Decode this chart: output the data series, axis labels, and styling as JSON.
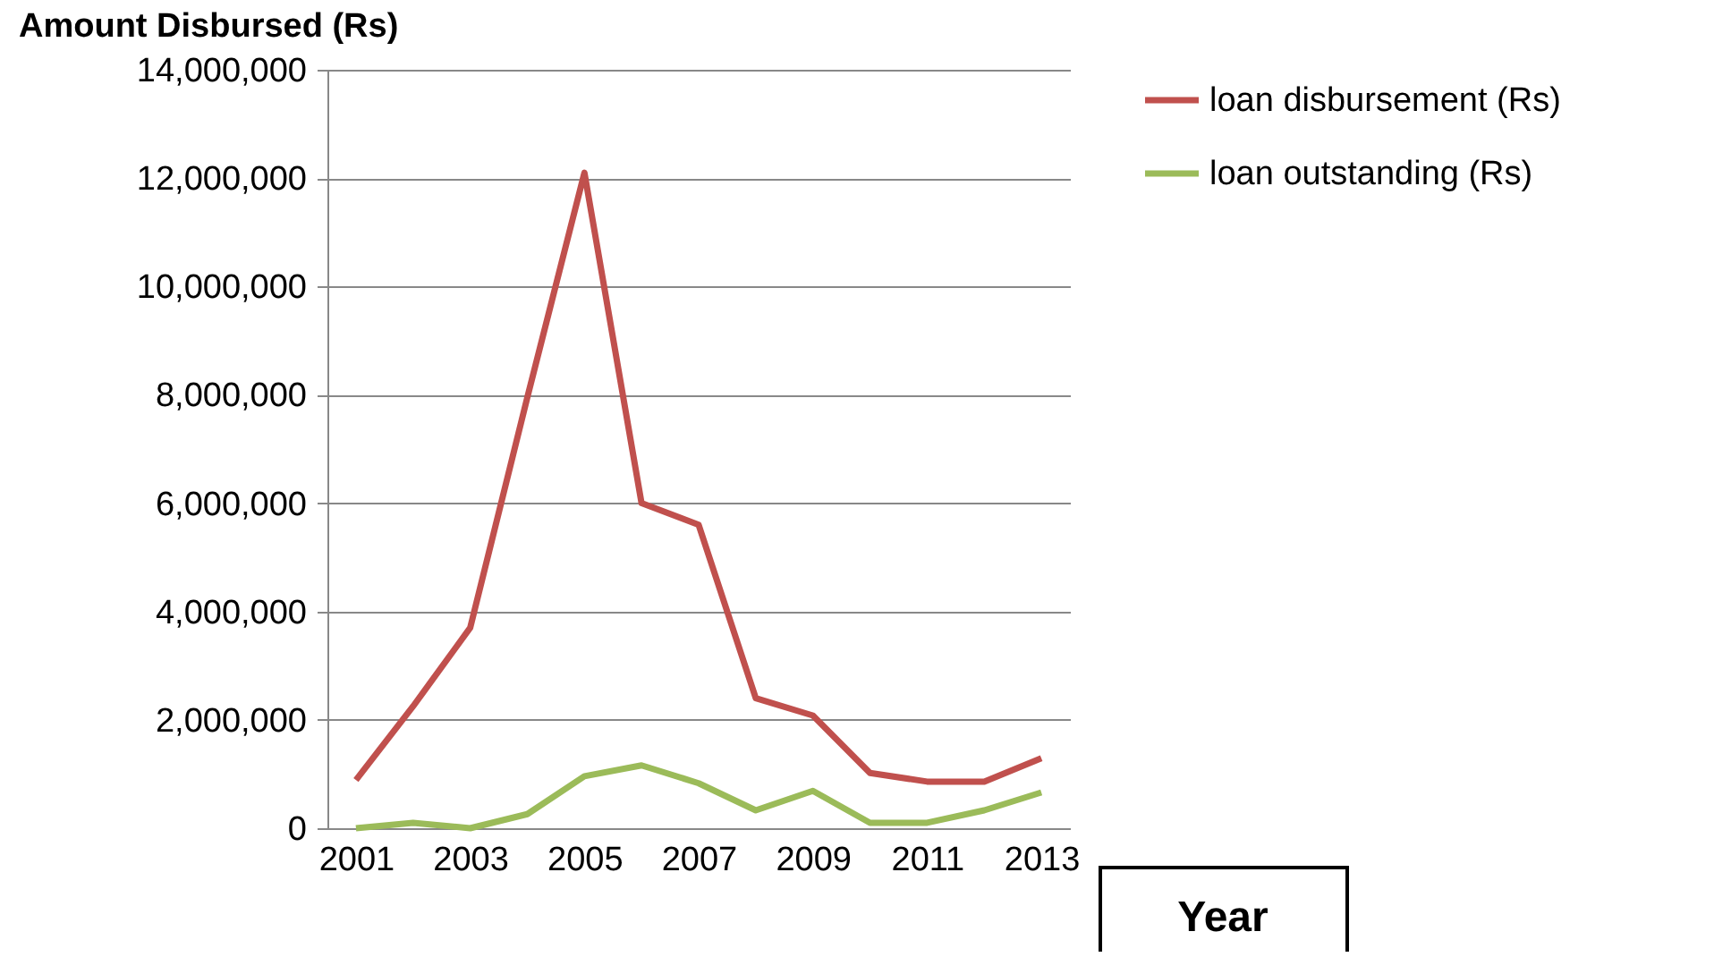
{
  "chart_data": {
    "type": "line",
    "ylabel": "Amount Disbursed (Rs)",
    "xlabel": "Year",
    "categories": [
      "2001",
      null,
      "2003",
      null,
      "2005",
      null,
      "2007",
      null,
      "2009",
      null,
      "2011",
      null,
      "2013"
    ],
    "series": [
      {
        "name": "loan disbursement (Rs)",
        "color": "#c0504d",
        "values": [
          890000,
          2250000,
          3700000,
          7950000,
          12100000,
          6000000,
          5600000,
          2400000,
          2080000,
          1020000,
          860000,
          860000,
          1290000
        ]
      },
      {
        "name": "loan outstanding (Rs)",
        "color": "#9bbb59",
        "values": [
          0,
          100000,
          0,
          260000,
          960000,
          1160000,
          830000,
          330000,
          690000,
          100000,
          100000,
          330000,
          660000
        ]
      }
    ],
    "ylim": [
      0,
      14000000
    ],
    "yticks": [
      0,
      {
        "value": 2000000,
        "label": "2,000,000"
      },
      {
        "value": 4000000,
        "label": "4,000,000"
      },
      {
        "value": 6000000,
        "label": "6,000,000"
      },
      {
        "value": 8000000,
        "label": "8,000,000"
      },
      {
        "value": 10000000,
        "label": "10,000,000"
      },
      {
        "value": 12000000,
        "label": "12,000,000"
      },
      {
        "value": 14000000,
        "label": "14,000,000"
      }
    ],
    "grid": "y",
    "legend": "right",
    "marker": "none",
    "line_style": "solid"
  }
}
